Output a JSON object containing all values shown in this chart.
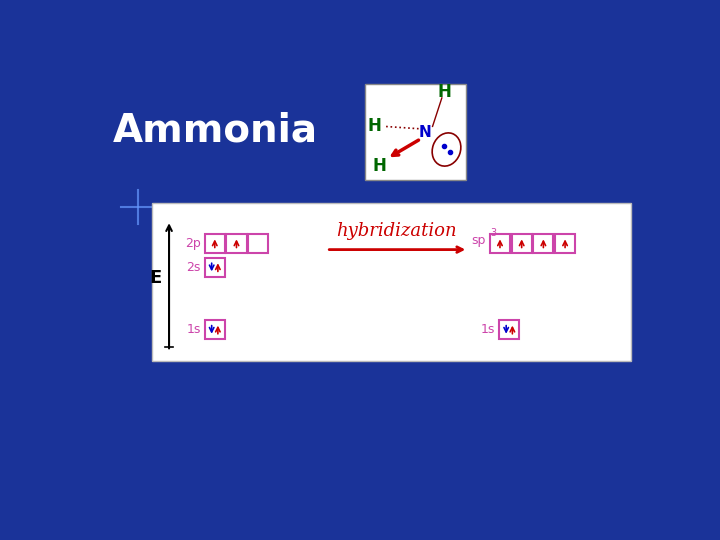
{
  "bg_color": "#1a3399",
  "panel_bg": "#ffffff",
  "title_text": "Ammonia",
  "title_color": "#ffffff",
  "title_fontsize": 28,
  "box_color": "#cc44aa",
  "arrow_color": "#cc0000",
  "hybridization_color": "#cc0000",
  "hybridization_text": "hybridization",
  "hybridization_fontsize": 13,
  "E_label": "E",
  "bg_color2": "#1a2299"
}
